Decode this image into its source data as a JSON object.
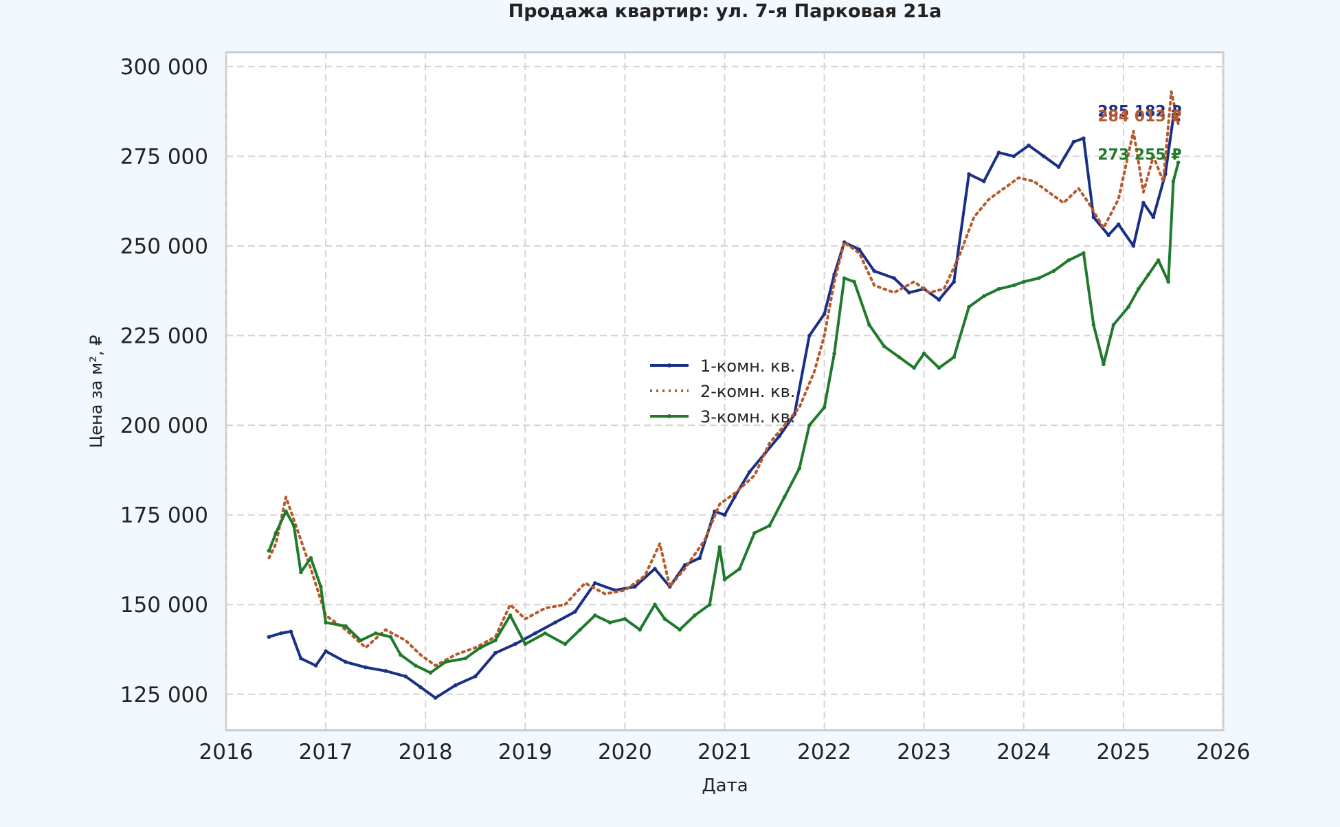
{
  "chart_data": {
    "type": "line",
    "title": "Продажа квартир: ул. 7-я Парковая 21а",
    "xlabel": "Дата",
    "ylabel": "Цена за м², ₽",
    "xlim": [
      2016.0,
      2026.0
    ],
    "ylim": [
      115000,
      304000
    ],
    "x_ticks": [
      2016,
      2017,
      2018,
      2019,
      2020,
      2021,
      2022,
      2023,
      2024,
      2025,
      2026
    ],
    "x_tick_labels": [
      "2016",
      "2017",
      "2018",
      "2019",
      "2020",
      "2021",
      "2022",
      "2023",
      "2024",
      "2025",
      "2026"
    ],
    "y_ticks": [
      125000,
      150000,
      175000,
      200000,
      225000,
      250000,
      275000,
      300000
    ],
    "y_tick_labels": [
      "125 000",
      "150 000",
      "175 000",
      "200 000",
      "225 000",
      "250 000",
      "275 000",
      "300 000"
    ],
    "grid": true,
    "legend_position": "center",
    "series": [
      {
        "name": "1-комн. кв.",
        "color": "#1a2f86",
        "style": "solid-markers",
        "end_label": "285 182 ₽",
        "points": [
          [
            2016.43,
            141000
          ],
          [
            2016.55,
            142000
          ],
          [
            2016.65,
            142500
          ],
          [
            2016.75,
            135000
          ],
          [
            2016.9,
            133000
          ],
          [
            2017.0,
            137000
          ],
          [
            2017.2,
            134000
          ],
          [
            2017.4,
            132500
          ],
          [
            2017.6,
            131500
          ],
          [
            2017.8,
            130000
          ],
          [
            2017.95,
            127000
          ],
          [
            2018.1,
            124000
          ],
          [
            2018.3,
            127500
          ],
          [
            2018.5,
            130000
          ],
          [
            2018.7,
            136500
          ],
          [
            2018.9,
            139000
          ],
          [
            2019.1,
            142000
          ],
          [
            2019.3,
            145000
          ],
          [
            2019.5,
            148000
          ],
          [
            2019.7,
            156000
          ],
          [
            2019.9,
            154000
          ],
          [
            2020.1,
            155000
          ],
          [
            2020.3,
            160000
          ],
          [
            2020.45,
            155000
          ],
          [
            2020.6,
            161000
          ],
          [
            2020.75,
            163000
          ],
          [
            2020.9,
            176000
          ],
          [
            2021.0,
            175000
          ],
          [
            2021.1,
            180000
          ],
          [
            2021.25,
            187000
          ],
          [
            2021.4,
            192000
          ],
          [
            2021.55,
            197000
          ],
          [
            2021.7,
            203000
          ],
          [
            2021.85,
            225000
          ],
          [
            2022.0,
            231000
          ],
          [
            2022.1,
            242000
          ],
          [
            2022.2,
            251000
          ],
          [
            2022.35,
            249000
          ],
          [
            2022.5,
            243000
          ],
          [
            2022.7,
            241000
          ],
          [
            2022.85,
            237000
          ],
          [
            2023.0,
            238000
          ],
          [
            2023.15,
            235000
          ],
          [
            2023.3,
            240000
          ],
          [
            2023.45,
            270000
          ],
          [
            2023.6,
            268000
          ],
          [
            2023.75,
            276000
          ],
          [
            2023.9,
            275000
          ],
          [
            2024.05,
            278000
          ],
          [
            2024.2,
            275000
          ],
          [
            2024.35,
            272000
          ],
          [
            2024.5,
            279000
          ],
          [
            2024.6,
            280000
          ],
          [
            2024.7,
            258000
          ],
          [
            2024.85,
            253000
          ],
          [
            2024.95,
            256000
          ],
          [
            2025.1,
            250000
          ],
          [
            2025.2,
            262000
          ],
          [
            2025.3,
            258000
          ],
          [
            2025.42,
            270000
          ],
          [
            2025.5,
            286000
          ],
          [
            2025.55,
            285182
          ]
        ]
      },
      {
        "name": "2-комн. кв.",
        "color": "#b65a2c",
        "style": "dotted",
        "end_label": "284 013 ₽",
        "points": [
          [
            2016.43,
            163000
          ],
          [
            2016.5,
            167000
          ],
          [
            2016.6,
            180000
          ],
          [
            2016.7,
            172000
          ],
          [
            2016.85,
            160000
          ],
          [
            2017.0,
            147000
          ],
          [
            2017.2,
            143000
          ],
          [
            2017.4,
            138000
          ],
          [
            2017.6,
            143000
          ],
          [
            2017.8,
            140000
          ],
          [
            2017.95,
            136000
          ],
          [
            2018.1,
            133000
          ],
          [
            2018.3,
            136000
          ],
          [
            2018.5,
            138000
          ],
          [
            2018.7,
            141000
          ],
          [
            2018.85,
            150000
          ],
          [
            2019.0,
            146000
          ],
          [
            2019.2,
            149000
          ],
          [
            2019.4,
            150000
          ],
          [
            2019.6,
            156000
          ],
          [
            2019.8,
            153000
          ],
          [
            2020.0,
            154000
          ],
          [
            2020.2,
            158000
          ],
          [
            2020.35,
            167000
          ],
          [
            2020.45,
            155000
          ],
          [
            2020.6,
            160000
          ],
          [
            2020.8,
            168000
          ],
          [
            2020.95,
            178000
          ],
          [
            2021.1,
            181000
          ],
          [
            2021.3,
            186000
          ],
          [
            2021.45,
            195000
          ],
          [
            2021.6,
            200000
          ],
          [
            2021.75,
            205000
          ],
          [
            2021.9,
            215000
          ],
          [
            2022.0,
            225000
          ],
          [
            2022.1,
            240000
          ],
          [
            2022.2,
            251000
          ],
          [
            2022.35,
            248000
          ],
          [
            2022.5,
            239000
          ],
          [
            2022.7,
            237000
          ],
          [
            2022.9,
            240000
          ],
          [
            2023.05,
            237000
          ],
          [
            2023.2,
            238000
          ],
          [
            2023.35,
            247000
          ],
          [
            2023.5,
            258000
          ],
          [
            2023.65,
            263000
          ],
          [
            2023.8,
            266000
          ],
          [
            2023.95,
            269000
          ],
          [
            2024.1,
            268000
          ],
          [
            2024.25,
            265000
          ],
          [
            2024.4,
            262000
          ],
          [
            2024.55,
            266000
          ],
          [
            2024.65,
            262000
          ],
          [
            2024.8,
            255000
          ],
          [
            2024.95,
            263000
          ],
          [
            2025.1,
            282000
          ],
          [
            2025.2,
            265000
          ],
          [
            2025.3,
            275000
          ],
          [
            2025.4,
            268000
          ],
          [
            2025.48,
            293000
          ],
          [
            2025.55,
            284013
          ]
        ]
      },
      {
        "name": "3-комн. кв.",
        "color": "#1f7a2b",
        "style": "solid-markers",
        "end_label": "273 255 ₽",
        "points": [
          [
            2016.43,
            165000
          ],
          [
            2016.5,
            170000
          ],
          [
            2016.6,
            176000
          ],
          [
            2016.68,
            172000
          ],
          [
            2016.75,
            159000
          ],
          [
            2016.85,
            163000
          ],
          [
            2016.95,
            155000
          ],
          [
            2017.0,
            145000
          ],
          [
            2017.2,
            144000
          ],
          [
            2017.35,
            140000
          ],
          [
            2017.5,
            142000
          ],
          [
            2017.65,
            141000
          ],
          [
            2017.75,
            136000
          ],
          [
            2017.9,
            133000
          ],
          [
            2018.05,
            131000
          ],
          [
            2018.2,
            134000
          ],
          [
            2018.4,
            135000
          ],
          [
            2018.55,
            138000
          ],
          [
            2018.7,
            140000
          ],
          [
            2018.85,
            147000
          ],
          [
            2019.0,
            139000
          ],
          [
            2019.2,
            142000
          ],
          [
            2019.4,
            139000
          ],
          [
            2019.55,
            143000
          ],
          [
            2019.7,
            147000
          ],
          [
            2019.85,
            145000
          ],
          [
            2020.0,
            146000
          ],
          [
            2020.15,
            143000
          ],
          [
            2020.3,
            150000
          ],
          [
            2020.4,
            146000
          ],
          [
            2020.55,
            143000
          ],
          [
            2020.7,
            147000
          ],
          [
            2020.85,
            150000
          ],
          [
            2020.95,
            166000
          ],
          [
            2021.0,
            157000
          ],
          [
            2021.15,
            160000
          ],
          [
            2021.3,
            170000
          ],
          [
            2021.45,
            172000
          ],
          [
            2021.6,
            180000
          ],
          [
            2021.75,
            188000
          ],
          [
            2021.85,
            200000
          ],
          [
            2022.0,
            205000
          ],
          [
            2022.1,
            220000
          ],
          [
            2022.2,
            241000
          ],
          [
            2022.3,
            240000
          ],
          [
            2022.45,
            228000
          ],
          [
            2022.6,
            222000
          ],
          [
            2022.75,
            219000
          ],
          [
            2022.9,
            216000
          ],
          [
            2023.0,
            220000
          ],
          [
            2023.15,
            216000
          ],
          [
            2023.3,
            219000
          ],
          [
            2023.45,
            233000
          ],
          [
            2023.6,
            236000
          ],
          [
            2023.75,
            238000
          ],
          [
            2023.9,
            239000
          ],
          [
            2024.0,
            240000
          ],
          [
            2024.15,
            241000
          ],
          [
            2024.3,
            243000
          ],
          [
            2024.45,
            246000
          ],
          [
            2024.6,
            248000
          ],
          [
            2024.7,
            228000
          ],
          [
            2024.8,
            217000
          ],
          [
            2024.9,
            228000
          ],
          [
            2025.05,
            233000
          ],
          [
            2025.15,
            238000
          ],
          [
            2025.25,
            242000
          ],
          [
            2025.35,
            246000
          ],
          [
            2025.45,
            240000
          ],
          [
            2025.5,
            268000
          ],
          [
            2025.55,
            273255
          ]
        ]
      }
    ]
  }
}
